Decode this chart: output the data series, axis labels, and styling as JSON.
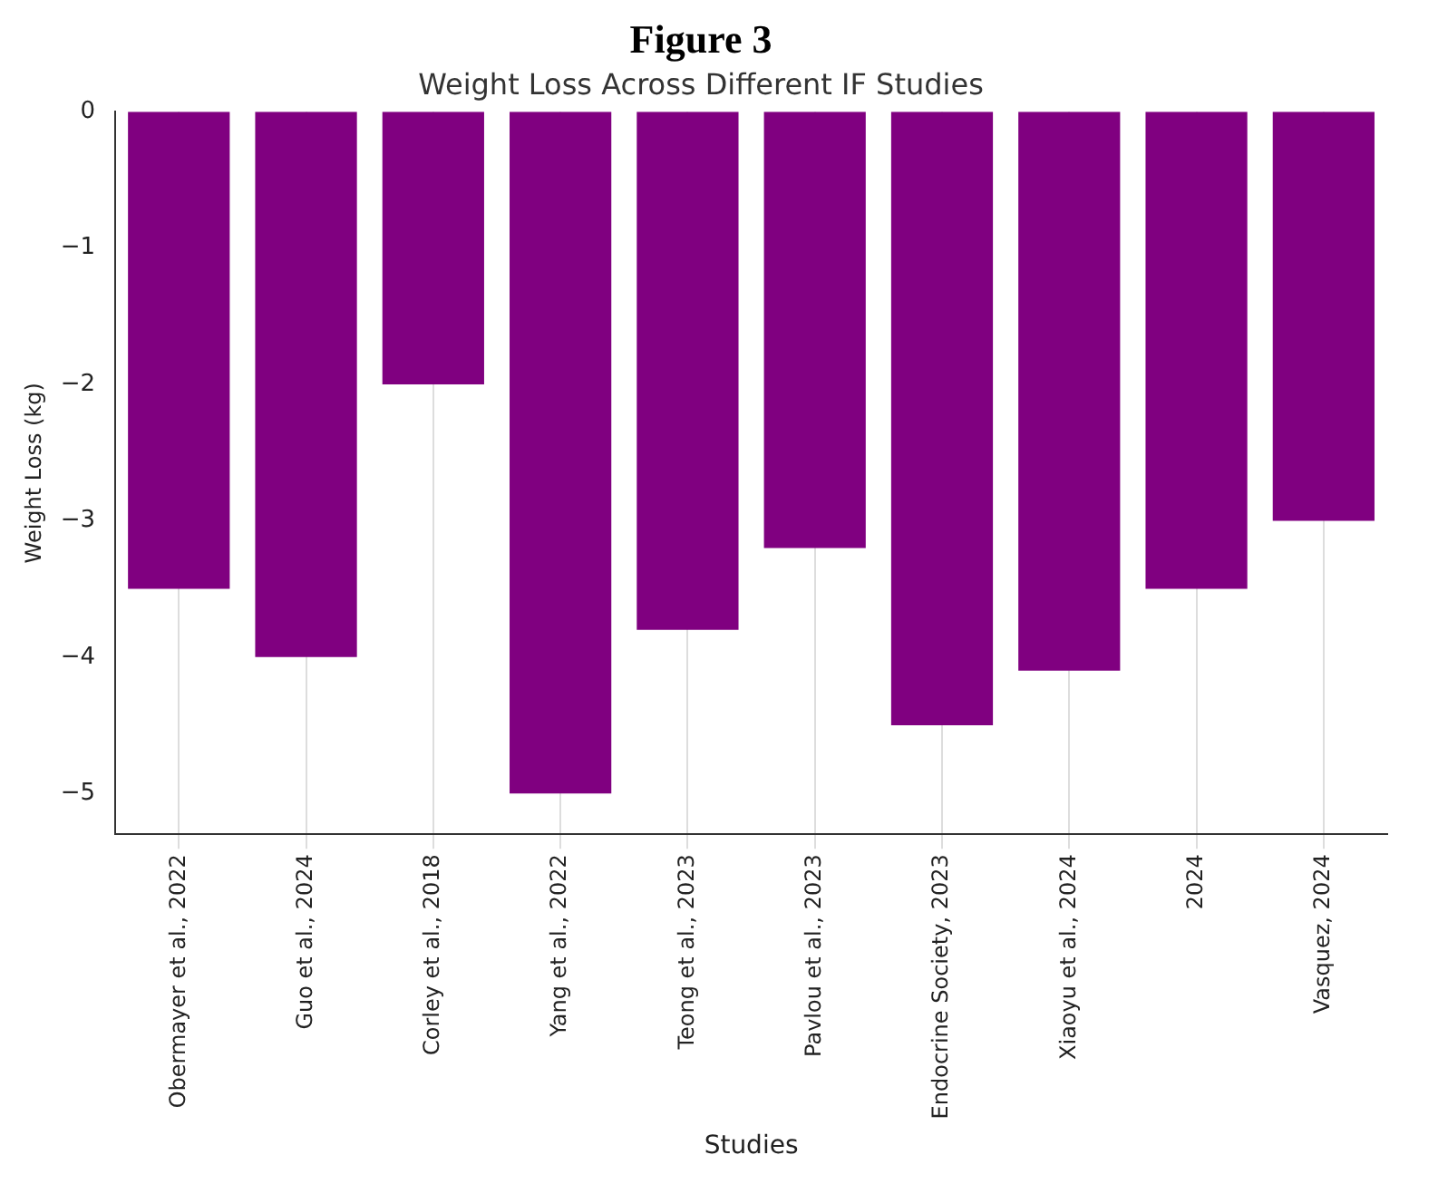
{
  "chart_data": {
    "type": "bar",
    "title": "Figure 3",
    "subtitle": "Weight Loss Across Different IF Studies",
    "xlabel": "Studies",
    "ylabel": "Weight Loss (kg)",
    "categories": [
      "Obermayer et al., 2022",
      "Guo et al., 2024",
      "Corley et al., 2018",
      "Yang et al., 2022",
      "Teong et al., 2023",
      "Pavlou et al., 2023",
      "Endocrine Society, 2023",
      "Xiaoyu et al., 2024",
      "2024",
      "Vasquez, 2024"
    ],
    "values": [
      -3.5,
      -4,
      -2,
      -5,
      -3.8,
      -3.2,
      -4.5,
      -4.1,
      -3.5,
      -3
    ],
    "color": "#800080",
    "ylim": [
      -5.3,
      0
    ],
    "yticks": [
      -5,
      -4,
      -3,
      -2,
      -1,
      0
    ],
    "grid": "x",
    "legend": false
  }
}
